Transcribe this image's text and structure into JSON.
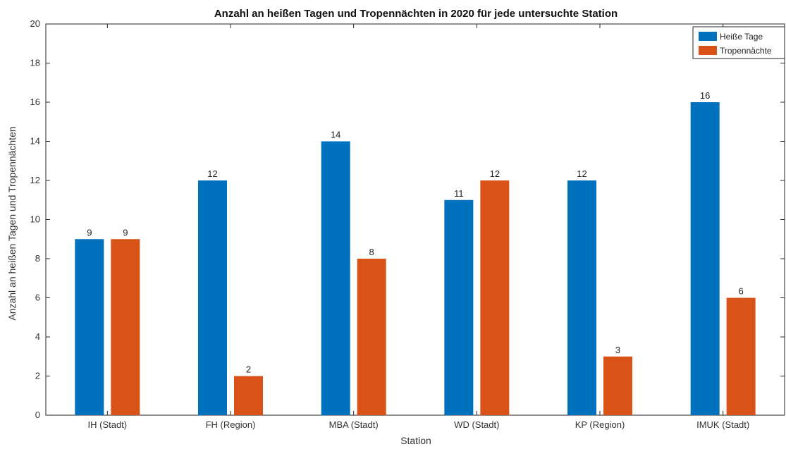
{
  "chart_data": {
    "type": "bar",
    "title": "Anzahl an heißen Tagen und Tropennächten in 2020 für jede untersuchte Station",
    "xlabel": "Station",
    "ylabel": "Anzahl an heißen Tagen und Tropennächten",
    "ylim": [
      0,
      20
    ],
    "yticks": [
      0,
      2,
      4,
      6,
      8,
      10,
      12,
      14,
      16,
      18,
      20
    ],
    "categories": [
      "IH (Stadt)",
      "FH (Region)",
      "MBA (Stadt)",
      "WD (Stadt)",
      "KP (Region)",
      "IMUK (Stadt)"
    ],
    "series": [
      {
        "name": "Heiße Tage",
        "color": "#0072BD",
        "values": [
          9,
          12,
          14,
          11,
          12,
          16
        ]
      },
      {
        "name": "Tropennächte",
        "color": "#D95319",
        "values": [
          9,
          2,
          8,
          12,
          3,
          6
        ]
      }
    ],
    "legend_position": "top-right",
    "grid": false
  }
}
